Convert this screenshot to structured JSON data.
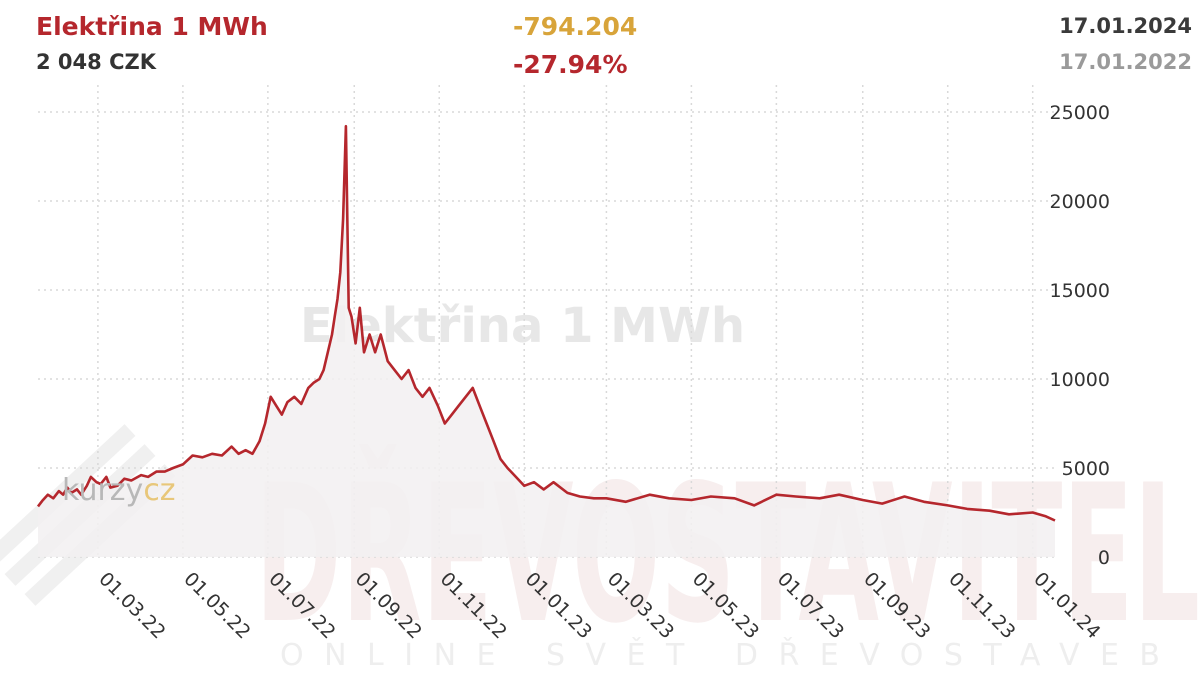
{
  "header": {
    "title": "Elektřina 1 MWh",
    "price": "2 048 CZK",
    "change_abs": "-794.204",
    "change_pct": "-27.94%",
    "date_current": "17.01.2024",
    "date_reference": "17.01.2022"
  },
  "watermarks": {
    "chart_name": "Elektřina 1 MWh",
    "logo_left": "kurzy",
    "logo_right": "cz",
    "brand": "DŘEVOSTAVITEL",
    "brand_sub": "ONLINE SVĚT DŘEVOSTAVEB"
  },
  "colors": {
    "line": "#b5272d",
    "area": "#f2f0f1",
    "grid": "#d9d9d9",
    "change_abs": "#d8a43a",
    "change_pct": "#b5272d"
  },
  "chart_data": {
    "type": "area",
    "title": "Elektřina 1 MWh",
    "xlabel": "",
    "ylabel": "",
    "y_ticks": [
      "25000",
      "20000",
      "15000",
      "10000",
      "5000",
      "0"
    ],
    "x_ticks": [
      "01.03.22",
      "01.05.22",
      "01.07.22",
      "01.09.22",
      "01.11.22",
      "01.01.23",
      "01.03.23",
      "01.05.23",
      "01.07.23",
      "01.09.23",
      "01.11.23",
      "01.01.24"
    ],
    "ylim": [
      0,
      25000
    ],
    "xlim": [
      "2022-01-17",
      "2024-01-17"
    ],
    "grid": true,
    "series": [
      {
        "x": [
          "2022-01-17",
          "2022-01-20",
          "2022-01-24",
          "2022-01-28",
          "2022-02-01",
          "2022-02-04",
          "2022-02-07",
          "2022-02-10",
          "2022-02-14",
          "2022-02-17",
          "2022-02-21",
          "2022-02-24",
          "2022-02-28",
          "2022-03-03",
          "2022-03-07",
          "2022-03-10",
          "2022-03-15",
          "2022-03-20",
          "2022-03-25",
          "2022-04-01",
          "2022-04-06",
          "2022-04-12",
          "2022-04-18",
          "2022-04-24",
          "2022-05-01",
          "2022-05-08",
          "2022-05-15",
          "2022-05-22",
          "2022-05-29",
          "2022-06-05",
          "2022-06-10",
          "2022-06-15",
          "2022-06-20",
          "2022-06-25",
          "2022-06-29",
          "2022-07-03",
          "2022-07-07",
          "2022-07-11",
          "2022-07-15",
          "2022-07-20",
          "2022-07-25",
          "2022-07-30",
          "2022-08-03",
          "2022-08-07",
          "2022-08-10",
          "2022-08-13",
          "2022-08-16",
          "2022-08-18",
          "2022-08-20",
          "2022-08-22",
          "2022-08-24",
          "2022-08-26",
          "2022-08-28",
          "2022-08-30",
          "2022-09-02",
          "2022-09-05",
          "2022-09-08",
          "2022-09-12",
          "2022-09-16",
          "2022-09-20",
          "2022-09-25",
          "2022-09-30",
          "2022-10-05",
          "2022-10-10",
          "2022-10-15",
          "2022-10-20",
          "2022-10-25",
          "2022-10-31",
          "2022-11-05",
          "2022-11-10",
          "2022-11-15",
          "2022-11-20",
          "2022-11-25",
          "2022-11-30",
          "2022-12-05",
          "2022-12-10",
          "2022-12-15",
          "2022-12-20",
          "2022-12-26",
          "2023-01-01",
          "2023-01-08",
          "2023-01-15",
          "2023-01-22",
          "2023-02-01",
          "2023-02-10",
          "2023-02-20",
          "2023-03-01",
          "2023-03-15",
          "2023-04-01",
          "2023-04-15",
          "2023-05-01",
          "2023-05-15",
          "2023-06-01",
          "2023-06-15",
          "2023-07-01",
          "2023-07-15",
          "2023-08-01",
          "2023-08-15",
          "2023-09-01",
          "2023-09-15",
          "2023-10-01",
          "2023-10-15",
          "2023-11-01",
          "2023-11-15",
          "2023-12-01",
          "2023-12-15",
          "2024-01-01",
          "2024-01-10",
          "2024-01-17"
        ],
        "y": [
          2842,
          3150,
          3500,
          3300,
          3700,
          3500,
          3900,
          3600,
          3800,
          3500,
          4000,
          4500,
          4200,
          4100,
          4500,
          3900,
          4000,
          4400,
          4300,
          4600,
          4500,
          4800,
          4800,
          5000,
          5200,
          5700,
          5600,
          5800,
          5700,
          6200,
          5800,
          6000,
          5800,
          6500,
          7500,
          9000,
          8500,
          8000,
          8700,
          9000,
          8600,
          9500,
          9800,
          10000,
          10500,
          11500,
          12500,
          13500,
          14500,
          16000,
          19000,
          24200,
          14000,
          13500,
          12000,
          14000,
          11500,
          12500,
          11500,
          12500,
          11000,
          10500,
          10000,
          10500,
          9500,
          9000,
          9500,
          8500,
          7500,
          8000,
          8500,
          9000,
          9500,
          8500,
          7500,
          6500,
          5500,
          5000,
          4500,
          4000,
          4200,
          3800,
          4200,
          3600,
          3400,
          3300,
          3300,
          3100,
          3500,
          3300,
          3200,
          3400,
          3300,
          2900,
          3500,
          3400,
          3300,
          3500,
          3200,
          3000,
          3400,
          3100,
          2900,
          2700,
          2600,
          2400,
          2500,
          2300,
          2048
        ]
      }
    ]
  }
}
